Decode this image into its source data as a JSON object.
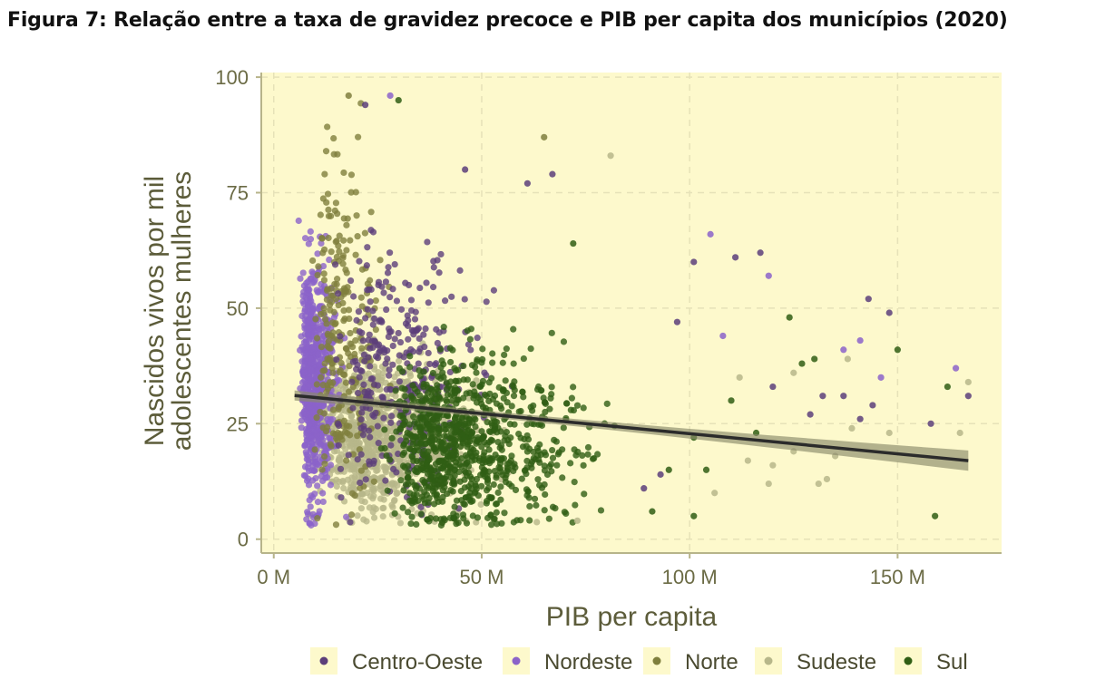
{
  "figure_title": "Figura 7: Relação entre a taxa de gravidez precoce e PIB per capita dos municípios (2020)",
  "chart_data": {
    "type": "scatter",
    "xlabel": "PIB per capita",
    "ylabel_lines": [
      "Nascidos vivos por mil",
      "adolescentes mulheres"
    ],
    "xlim": [
      -3,
      175
    ],
    "ylim": [
      -3,
      101
    ],
    "x_ticks": [
      0,
      50,
      100,
      150
    ],
    "x_tick_labels": [
      "0 M",
      "50 M",
      "100 M",
      "150 M"
    ],
    "y_ticks": [
      0,
      25,
      50,
      75,
      100
    ],
    "y_tick_labels": [
      "0",
      "25",
      "50",
      "75",
      "100"
    ],
    "grid": true,
    "legend_position": "bottom",
    "background_color": "#fdf9cc",
    "series": [
      {
        "name": "Centro-Oeste",
        "color": "#5c3f7a",
        "center": [
          22,
          36
        ],
        "spread": [
          12,
          13
        ],
        "count": 300
      },
      {
        "name": "Nordeste",
        "color": "#8b63c9",
        "center": [
          8,
          34
        ],
        "spread": [
          3,
          12
        ],
        "count": 700
      },
      {
        "name": "Norte",
        "color": "#7f7f3d",
        "center": [
          13,
          42
        ],
        "spread": [
          6,
          18
        ],
        "count": 250
      },
      {
        "name": "Sudeste",
        "color": "#b7b78a",
        "center": [
          18,
          22
        ],
        "spread": [
          13,
          8
        ],
        "count": 900
      },
      {
        "name": "Sul",
        "color": "#305e14",
        "center": [
          36,
          21
        ],
        "spread": [
          16,
          9
        ],
        "count": 900
      }
    ],
    "outliers": [
      {
        "x": 28,
        "y": 96,
        "series": "Nordeste"
      },
      {
        "x": 18,
        "y": 96,
        "series": "Norte"
      },
      {
        "x": 30,
        "y": 95,
        "series": "Sul"
      },
      {
        "x": 22,
        "y": 94,
        "series": "Centro-Oeste"
      },
      {
        "x": 65,
        "y": 87,
        "series": "Norte"
      },
      {
        "x": 81,
        "y": 83,
        "series": "Sudeste"
      },
      {
        "x": 46,
        "y": 80,
        "series": "Centro-Oeste"
      },
      {
        "x": 67,
        "y": 79,
        "series": "Centro-Oeste"
      },
      {
        "x": 61,
        "y": 77,
        "series": "Centro-Oeste"
      },
      {
        "x": 105,
        "y": 66,
        "series": "Nordeste"
      },
      {
        "x": 72,
        "y": 64,
        "series": "Sul"
      },
      {
        "x": 111,
        "y": 61,
        "series": "Centro-Oeste"
      },
      {
        "x": 117,
        "y": 62,
        "series": "Centro-Oeste"
      },
      {
        "x": 101,
        "y": 60,
        "series": "Centro-Oeste"
      },
      {
        "x": 119,
        "y": 57,
        "series": "Nordeste"
      },
      {
        "x": 143,
        "y": 52,
        "series": "Centro-Oeste"
      },
      {
        "x": 148,
        "y": 49,
        "series": "Centro-Oeste"
      },
      {
        "x": 124,
        "y": 48,
        "series": "Sul"
      },
      {
        "x": 97,
        "y": 47,
        "series": "Centro-Oeste"
      },
      {
        "x": 108,
        "y": 44,
        "series": "Nordeste"
      },
      {
        "x": 137,
        "y": 41,
        "series": "Nordeste"
      },
      {
        "x": 150,
        "y": 41,
        "series": "Sul"
      },
      {
        "x": 130,
        "y": 39,
        "series": "Sul"
      },
      {
        "x": 141,
        "y": 43,
        "series": "Nordeste"
      },
      {
        "x": 127,
        "y": 38,
        "series": "Sul"
      },
      {
        "x": 138,
        "y": 39,
        "series": "Sudeste"
      },
      {
        "x": 164,
        "y": 37,
        "series": "Nordeste"
      },
      {
        "x": 146,
        "y": 35,
        "series": "Nordeste"
      },
      {
        "x": 112,
        "y": 35,
        "series": "Sudeste"
      },
      {
        "x": 125,
        "y": 36,
        "series": "Sudeste"
      },
      {
        "x": 167,
        "y": 34,
        "series": "Sudeste"
      },
      {
        "x": 162,
        "y": 33,
        "series": "Sul"
      },
      {
        "x": 120,
        "y": 33,
        "series": "Centro-Oeste"
      },
      {
        "x": 132,
        "y": 31,
        "series": "Centro-Oeste"
      },
      {
        "x": 137,
        "y": 31,
        "series": "Centro-Oeste"
      },
      {
        "x": 167,
        "y": 31,
        "series": "Centro-Oeste"
      },
      {
        "x": 110,
        "y": 30,
        "series": "Sul"
      },
      {
        "x": 144,
        "y": 29,
        "series": "Centro-Oeste"
      },
      {
        "x": 129,
        "y": 27,
        "series": "Centro-Oeste"
      },
      {
        "x": 141,
        "y": 26,
        "series": "Centro-Oeste"
      },
      {
        "x": 139,
        "y": 24,
        "series": "Sudeste"
      },
      {
        "x": 158,
        "y": 25,
        "series": "Centro-Oeste"
      },
      {
        "x": 116,
        "y": 23,
        "series": "Sul"
      },
      {
        "x": 148,
        "y": 23,
        "series": "Sudeste"
      },
      {
        "x": 165,
        "y": 23,
        "series": "Sudeste"
      },
      {
        "x": 101,
        "y": 22,
        "series": "Sul"
      },
      {
        "x": 125,
        "y": 19,
        "series": "Sudeste"
      },
      {
        "x": 135,
        "y": 18,
        "series": "Sudeste"
      },
      {
        "x": 114,
        "y": 17,
        "series": "Sudeste"
      },
      {
        "x": 120,
        "y": 16,
        "series": "Sudeste"
      },
      {
        "x": 104,
        "y": 15,
        "series": "Sul"
      },
      {
        "x": 95,
        "y": 15,
        "series": "Sul"
      },
      {
        "x": 93,
        "y": 14,
        "series": "Centro-Oeste"
      },
      {
        "x": 133,
        "y": 13,
        "series": "Sudeste"
      },
      {
        "x": 131,
        "y": 12,
        "series": "Sudeste"
      },
      {
        "x": 119,
        "y": 12,
        "series": "Sudeste"
      },
      {
        "x": 89,
        "y": 11,
        "series": "Centro-Oeste"
      },
      {
        "x": 106,
        "y": 10,
        "series": "Sudeste"
      },
      {
        "x": 91,
        "y": 6,
        "series": "Sul"
      },
      {
        "x": 101,
        "y": 5,
        "series": "Sul"
      },
      {
        "x": 159,
        "y": 5,
        "series": "Sul"
      },
      {
        "x": 73,
        "y": 4,
        "series": "Sudeste"
      }
    ],
    "trend": {
      "x": [
        5,
        167
      ],
      "y": [
        31.1,
        17.0
      ],
      "se": [
        0.7,
        2.2
      ],
      "line_color": "#2b2b2b",
      "band_color": "#8a8a6a"
    }
  }
}
